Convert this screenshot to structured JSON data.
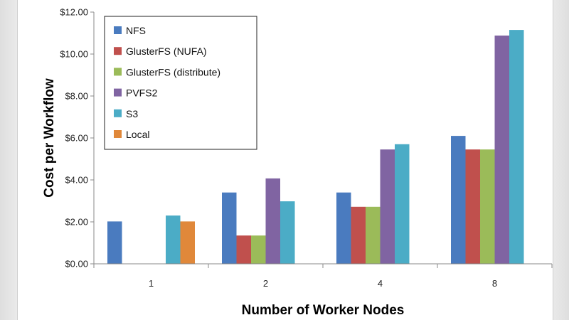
{
  "chart_data": {
    "type": "bar",
    "title": "",
    "xlabel": "Number of Worker Nodes",
    "ylabel": "Cost per Workflow",
    "categories": [
      "1",
      "2",
      "4",
      "8"
    ],
    "ylim": [
      0,
      12
    ],
    "yticks": [
      "$0.00",
      "$2.00",
      "$4.00",
      "$6.00",
      "$8.00",
      "$10.00",
      "$12.00"
    ],
    "ytick_values": [
      0,
      2,
      4,
      6,
      8,
      10,
      12
    ],
    "grid": false,
    "legend_position": "top-left",
    "series": [
      {
        "name": "NFS",
        "color": "#4a7bbf",
        "values": [
          2.02,
          3.4,
          3.4,
          6.1
        ]
      },
      {
        "name": "GlusterFS (NUFA)",
        "color": "#c0504d",
        "values": [
          null,
          1.35,
          2.72,
          5.45
        ]
      },
      {
        "name": "GlusterFS (distribute)",
        "color": "#9bbb59",
        "values": [
          null,
          1.35,
          2.72,
          5.45
        ]
      },
      {
        "name": "PVFS2",
        "color": "#8064a2",
        "values": [
          null,
          4.07,
          5.45,
          10.88
        ]
      },
      {
        "name": "S3",
        "color": "#4bacc6",
        "values": [
          2.3,
          2.98,
          5.7,
          11.15
        ]
      },
      {
        "name": "Local",
        "color": "#e0883a",
        "values": [
          2.02,
          null,
          null,
          null
        ]
      }
    ]
  }
}
